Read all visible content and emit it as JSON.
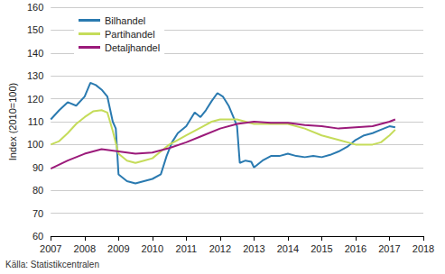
{
  "chart_data": {
    "type": "line",
    "y_label": "Index (2010=100)",
    "source": "Källa: Statistikcentralen",
    "xlim": [
      2007,
      2018
    ],
    "xticks": [
      2007,
      2008,
      2009,
      2010,
      2011,
      2012,
      2013,
      2014,
      2015,
      2016,
      2017,
      2018
    ],
    "ylim": [
      60,
      160
    ],
    "yticks": [
      60,
      70,
      80,
      90,
      100,
      110,
      120,
      130,
      140,
      150,
      160
    ],
    "grid": true,
    "legend": "top-left",
    "series": [
      {
        "name": "Bilhandel",
        "color": "#2a7ab0",
        "x": [
          2007.0,
          2007.25,
          2007.5,
          2007.75,
          2008.0,
          2008.17,
          2008.33,
          2008.5,
          2008.67,
          2008.83,
          2008.92,
          2009.0,
          2009.25,
          2009.5,
          2009.75,
          2010.0,
          2010.25,
          2010.42,
          2010.58,
          2010.75,
          2011.0,
          2011.25,
          2011.42,
          2011.58,
          2011.75,
          2011.92,
          2012.08,
          2012.25,
          2012.42,
          2012.5,
          2012.58,
          2012.75,
          2012.92,
          2013.0,
          2013.25,
          2013.5,
          2013.75,
          2014.0,
          2014.25,
          2014.5,
          2014.75,
          2015.0,
          2015.25,
          2015.5,
          2015.75,
          2016.0,
          2016.25,
          2016.5,
          2016.75,
          2017.0,
          2017.17
        ],
        "values": [
          111,
          115,
          118.5,
          117,
          121,
          127,
          126,
          124,
          121,
          110,
          107,
          87,
          84,
          83,
          84,
          85,
          87,
          95,
          101,
          105,
          108,
          114,
          112,
          115,
          119,
          122.5,
          121,
          117,
          111,
          108,
          92,
          93,
          92.5,
          90,
          93,
          95,
          95,
          96,
          95,
          94.5,
          95,
          94.5,
          95.5,
          97,
          99,
          102,
          104,
          105,
          106.5,
          108,
          107.5
        ]
      },
      {
        "name": "Partihandel",
        "color": "#c5dc5a",
        "x": [
          2007.0,
          2007.25,
          2007.5,
          2007.75,
          2008.0,
          2008.25,
          2008.5,
          2008.67,
          2008.83,
          2009.0,
          2009.25,
          2009.5,
          2009.75,
          2010.0,
          2010.25,
          2010.5,
          2010.75,
          2011.0,
          2011.25,
          2011.5,
          2011.75,
          2012.0,
          2012.25,
          2012.5,
          2012.75,
          2013.0,
          2013.5,
          2014.0,
          2014.5,
          2015.0,
          2015.5,
          2016.0,
          2016.5,
          2016.75,
          2017.0,
          2017.17
        ],
        "values": [
          100,
          101.5,
          105,
          109,
          112,
          114.5,
          115,
          114,
          106,
          96,
          93,
          92,
          93,
          94,
          97,
          100,
          102,
          104,
          106,
          108,
          110,
          111,
          111,
          111,
          110,
          109,
          109,
          109,
          107,
          104,
          102,
          100,
          100,
          101,
          104,
          106.5
        ]
      },
      {
        "name": "Detaljhandel",
        "color": "#9b1a7a",
        "x": [
          2007.0,
          2007.5,
          2008.0,
          2008.5,
          2009.0,
          2009.5,
          2010.0,
          2010.5,
          2011.0,
          2011.5,
          2012.0,
          2012.5,
          2013.0,
          2013.5,
          2014.0,
          2014.5,
          2015.0,
          2015.5,
          2016.0,
          2016.5,
          2017.0,
          2017.17
        ],
        "values": [
          89.5,
          93,
          96,
          98,
          97,
          96,
          96.5,
          98.5,
          101,
          104,
          107,
          109,
          110,
          109.5,
          109.5,
          108.5,
          108,
          107,
          107.5,
          108,
          110,
          111
        ]
      }
    ]
  }
}
